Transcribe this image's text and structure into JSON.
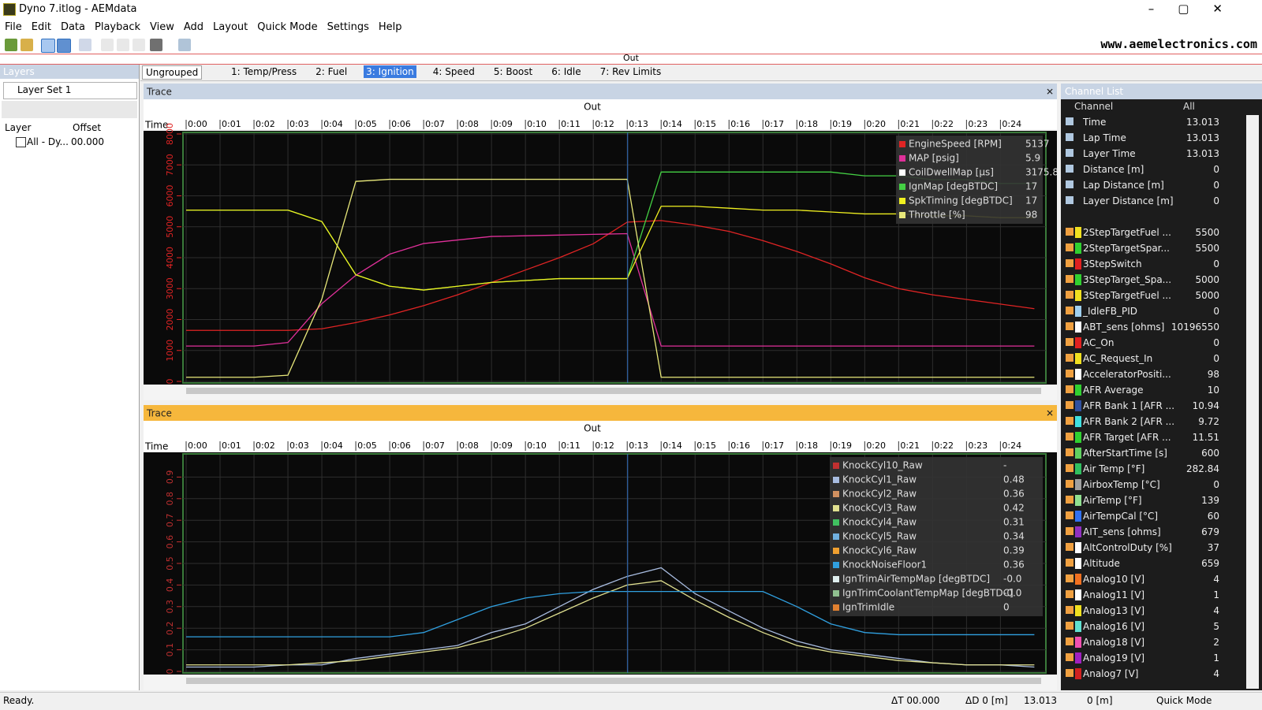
{
  "window": {
    "title": "Dyno 7.itlog - AEMdata"
  },
  "menu": [
    "File",
    "Edit",
    "Data",
    "Playback",
    "View",
    "Add",
    "Layout",
    "Quick Mode",
    "Settings",
    "Help"
  ],
  "toolbar": {
    "site": "www.aemelectronics.com",
    "out": "Out"
  },
  "layers": {
    "title": "Layers",
    "set": "Layer Set 1",
    "col_layer": "Layer",
    "col_offset": "Offset",
    "row_name": "All - Dy...",
    "row_offset": "00.000"
  },
  "tabs": {
    "group": "Ungrouped",
    "items": [
      "1: Temp/Press",
      "2: Fuel",
      "3: Ignition",
      "4: Speed",
      "5: Boost",
      "6: Idle",
      "7: Rev Limits"
    ],
    "active": 2
  },
  "traces": [
    {
      "type": "line",
      "header": "Trace",
      "title": "Out",
      "xlabel": "Time",
      "header_color": "#c8d4e4",
      "x": [
        0,
        1,
        2,
        3,
        4,
        5,
        6,
        7,
        8,
        9,
        10,
        11,
        12,
        13,
        14,
        15,
        16,
        17,
        18,
        19,
        20,
        21,
        22,
        23,
        24,
        25
      ],
      "xlim": [
        0,
        25.2
      ],
      "xticks": [
        {
          "value": 0,
          "label": "0:00"
        },
        {
          "value": 1,
          "label": "0:01"
        },
        {
          "value": 2,
          "label": "0:02"
        },
        {
          "value": 3,
          "label": "0:03"
        },
        {
          "value": 4,
          "label": "0:04"
        },
        {
          "value": 5,
          "label": "0:05"
        },
        {
          "value": 6,
          "label": "0:06"
        },
        {
          "value": 7,
          "label": "0:07"
        },
        {
          "value": 8,
          "label": "0:08"
        },
        {
          "value": 9,
          "label": "0:09"
        },
        {
          "value": 10,
          "label": "0:10"
        },
        {
          "value": 11,
          "label": "0:11"
        },
        {
          "value": 12,
          "label": "0:12"
        },
        {
          "value": 13,
          "label": "0:13"
        },
        {
          "value": 14,
          "label": "0:14"
        },
        {
          "value": 15,
          "label": "0:15"
        },
        {
          "value": 16,
          "label": "0:16"
        },
        {
          "value": 17,
          "label": "0:17"
        },
        {
          "value": 18,
          "label": "0:18"
        },
        {
          "value": 19,
          "label": "0:19"
        },
        {
          "value": 20,
          "label": "0:20"
        },
        {
          "value": 21,
          "label": "0:21"
        },
        {
          "value": 22,
          "label": "0:22"
        },
        {
          "value": 23,
          "label": "0:23"
        },
        {
          "value": 24,
          "label": "0:24"
        }
      ],
      "ylim": [
        0,
        8000
      ],
      "yticks": [
        0,
        1000,
        2000,
        3000,
        4000,
        5000,
        6000,
        7000,
        8000
      ],
      "series": [
        {
          "name": "EngineSpeed [RPM]",
          "color": "#e02424",
          "legend_value": "5137",
          "values": [
            1650,
            1650,
            1650,
            1650,
            1700,
            1900,
            2150,
            2450,
            2800,
            3200,
            3600,
            4000,
            4450,
            5150,
            5200,
            5050,
            4850,
            4550,
            4200,
            3800,
            3350,
            3000,
            2800,
            2650,
            2500,
            2350
          ]
        },
        {
          "name": "MAP [psig]",
          "color": "#e0309a",
          "legend_value": "5.9",
          "ylim": [
            -15,
            20
          ],
          "values": [
            -10,
            -10,
            -10,
            -9.5,
            -4,
            0,
            3,
            4.5,
            5,
            5.5,
            5.6,
            5.7,
            5.8,
            5.9,
            -10,
            -10,
            -10,
            -10,
            -10,
            -10,
            -10,
            -10,
            -10,
            -10,
            -10,
            -10
          ]
        },
        {
          "name": "CoilDwellMap [µs]",
          "color": "#ffffff",
          "legend_value": "3175.8"
        },
        {
          "name": "IgnMap [degBTDC]",
          "color": "#44d044",
          "legend_value": "17",
          "ylim": [
            -10,
            55
          ],
          "values": [
            35,
            35,
            35,
            35,
            32,
            18,
            15,
            14,
            15,
            16,
            16.5,
            17,
            17,
            17,
            45,
            45,
            45,
            45,
            45,
            45,
            44,
            44,
            43,
            43,
            42,
            42
          ]
        },
        {
          "name": "SpkTiming [degBTDC]",
          "color": "#f0f020",
          "legend_value": "17",
          "ylim": [
            -10,
            55
          ],
          "values": [
            35,
            35,
            35,
            35,
            32,
            18,
            15,
            14,
            15,
            16,
            16.5,
            17,
            17,
            17,
            36,
            36,
            35.5,
            35,
            35,
            34.5,
            34,
            34,
            33.5,
            33.5,
            33,
            33
          ]
        },
        {
          "name": "Throttle [%]",
          "color": "#e8e87a",
          "legend_value": "98",
          "ylim": [
            0,
            120
          ],
          "values": [
            2,
            2,
            2,
            3,
            40,
            97,
            98,
            98,
            98,
            98,
            98,
            98,
            98,
            98,
            2,
            2,
            2,
            2,
            2,
            2,
            2,
            2,
            2,
            2,
            2,
            2
          ]
        }
      ]
    },
    {
      "type": "line",
      "header": "Trace",
      "title": "Out",
      "xlabel": "Time",
      "header_color": "#f6b73c",
      "x": [
        0,
        1,
        2,
        3,
        4,
        5,
        6,
        7,
        8,
        9,
        10,
        11,
        12,
        13,
        14,
        15,
        16,
        17,
        18,
        19,
        20,
        21,
        22,
        23,
        24,
        25
      ],
      "xlim": [
        0,
        25.2
      ],
      "xticks": [
        {
          "value": 0,
          "label": "0:00"
        },
        {
          "value": 1,
          "label": "0:01"
        },
        {
          "value": 2,
          "label": "0:02"
        },
        {
          "value": 3,
          "label": "0:03"
        },
        {
          "value": 4,
          "label": "0:04"
        },
        {
          "value": 5,
          "label": "0:05"
        },
        {
          "value": 6,
          "label": "0:06"
        },
        {
          "value": 7,
          "label": "0:07"
        },
        {
          "value": 8,
          "label": "0:08"
        },
        {
          "value": 9,
          "label": "0:09"
        },
        {
          "value": 10,
          "label": "0:10"
        },
        {
          "value": 11,
          "label": "0:11"
        },
        {
          "value": 12,
          "label": "0:12"
        },
        {
          "value": 13,
          "label": "0:13"
        },
        {
          "value": 14,
          "label": "0:14"
        },
        {
          "value": 15,
          "label": "0:15"
        },
        {
          "value": 16,
          "label": "0:16"
        },
        {
          "value": 17,
          "label": "0:17"
        },
        {
          "value": 18,
          "label": "0:18"
        },
        {
          "value": 19,
          "label": "0:19"
        },
        {
          "value": 20,
          "label": "0:20"
        },
        {
          "value": 21,
          "label": "0:21"
        },
        {
          "value": 22,
          "label": "0:22"
        },
        {
          "value": 23,
          "label": "0:23"
        },
        {
          "value": 24,
          "label": "0:24"
        }
      ],
      "ylim": [
        0,
        1
      ],
      "yticks": [
        0,
        0.1,
        0.2,
        0.3,
        0.4,
        0.5,
        0.6,
        0.7,
        0.8,
        0.9
      ],
      "series": [
        {
          "name": "KnockCyl10_Raw",
          "color": "#c03030",
          "legend_value": "-"
        },
        {
          "name": "KnockCyl1_Raw",
          "color": "#a8bce0",
          "legend_value": "0.48",
          "values": [
            0.02,
            0.02,
            0.02,
            0.03,
            0.03,
            0.06,
            0.08,
            0.1,
            0.12,
            0.18,
            0.22,
            0.3,
            0.38,
            0.44,
            0.48,
            0.36,
            0.28,
            0.2,
            0.14,
            0.1,
            0.08,
            0.06,
            0.04,
            0.03,
            0.03,
            0.02
          ]
        },
        {
          "name": "KnockCyl2_Raw",
          "color": "#d09060",
          "legend_value": "0.36"
        },
        {
          "name": "KnockCyl3_Raw",
          "color": "#e0e090",
          "legend_value": "0.42",
          "values": [
            0.03,
            0.03,
            0.03,
            0.03,
            0.04,
            0.05,
            0.07,
            0.09,
            0.11,
            0.15,
            0.2,
            0.27,
            0.34,
            0.4,
            0.42,
            0.33,
            0.25,
            0.18,
            0.12,
            0.09,
            0.07,
            0.05,
            0.04,
            0.03,
            0.03,
            0.03
          ]
        },
        {
          "name": "KnockCyl4_Raw",
          "color": "#40c060",
          "legend_value": "0.31"
        },
        {
          "name": "KnockCyl5_Raw",
          "color": "#70b0e0",
          "legend_value": "0.34"
        },
        {
          "name": "KnockCyl6_Raw",
          "color": "#f0a030",
          "legend_value": "0.39"
        },
        {
          "name": "KnockNoiseFloor1",
          "color": "#30a0e0",
          "legend_value": "0.36",
          "values": [
            0.16,
            0.16,
            0.16,
            0.16,
            0.16,
            0.16,
            0.16,
            0.18,
            0.24,
            0.3,
            0.34,
            0.36,
            0.37,
            0.37,
            0.37,
            0.37,
            0.37,
            0.37,
            0.3,
            0.22,
            0.18,
            0.17,
            0.17,
            0.17,
            0.17,
            0.17
          ]
        },
        {
          "name": "IgnTrimAirTempMap [degBTDC]",
          "color": "#e0f0f0",
          "legend_value": "-0.0"
        },
        {
          "name": "IgnTrimCoolantTempMap [degBTDC]",
          "color": "#90c090",
          "legend_value": "-0.0"
        },
        {
          "name": "IgnTrimIdle",
          "color": "#e08030",
          "legend_value": "0"
        }
      ]
    }
  ],
  "channel_list": {
    "title": "Channel List",
    "col_channel": "Channel",
    "filter": "All",
    "system": [
      {
        "name": "Time",
        "value": "13.013"
      },
      {
        "name": "Lap Time",
        "value": "13.013"
      },
      {
        "name": "Layer Time",
        "value": "13.013"
      },
      {
        "name": "Distance [m]",
        "value": "0"
      },
      {
        "name": "Lap Distance [m]",
        "value": "0"
      },
      {
        "name": "Layer Distance [m]",
        "value": "0"
      }
    ],
    "channels": [
      {
        "name": "2StepTargetFuel ...",
        "value": "5500",
        "color": "#f0e020"
      },
      {
        "name": "2StepTargetSpar...",
        "value": "5500",
        "color": "#30d030"
      },
      {
        "name": "3StepSwitch",
        "value": "0",
        "color": "#e02020"
      },
      {
        "name": "3StepTarget_Spa...",
        "value": "5000",
        "color": "#30d030"
      },
      {
        "name": "3StepTargetFuel ...",
        "value": "5000",
        "color": "#f0e020"
      },
      {
        "name": "_IdleFB_PID",
        "value": "0",
        "color": "#a0d0f0"
      },
      {
        "name": "ABT_sens [ohms]",
        "value": "10196550",
        "color": "#ffffff"
      },
      {
        "name": "AC_On",
        "value": "0",
        "color": "#e02020"
      },
      {
        "name": "AC_Request_In",
        "value": "0",
        "color": "#f0e020"
      },
      {
        "name": "AcceleratorPositi...",
        "value": "98",
        "color": "#ffffff"
      },
      {
        "name": "AFR Average",
        "value": "10",
        "color": "#30d030"
      },
      {
        "name": "AFR Bank 1 [AFR ...",
        "value": "10.94",
        "color": "#3050a0"
      },
      {
        "name": "AFR Bank 2 [AFR ...",
        "value": "9.72",
        "color": "#40e0e0"
      },
      {
        "name": "AFR Target [AFR ...",
        "value": "11.51",
        "color": "#30d030"
      },
      {
        "name": "AfterStartTime [s]",
        "value": "600",
        "color": "#60d060"
      },
      {
        "name": "Air Temp [°F]",
        "value": "282.84",
        "color": "#30c060"
      },
      {
        "name": "AirboxTemp [°C]",
        "value": "0",
        "color": "#a0a0a0"
      },
      {
        "name": "AirTemp [°F]",
        "value": "139",
        "color": "#90e090"
      },
      {
        "name": "AirTempCal [°C]",
        "value": "60",
        "color": "#3070f0"
      },
      {
        "name": "AIT_sens [ohms]",
        "value": "679",
        "color": "#9030c0"
      },
      {
        "name": "AltControlDuty [%]",
        "value": "37",
        "color": "#ffffff"
      },
      {
        "name": "Altitude",
        "value": "659",
        "color": "#ffffff"
      },
      {
        "name": "Analog10 [V]",
        "value": "4",
        "color": "#f07020"
      },
      {
        "name": "Analog11 [V]",
        "value": "1",
        "color": "#ffffff"
      },
      {
        "name": "Analog13 [V]",
        "value": "4",
        "color": "#f0e020"
      },
      {
        "name": "Analog16 [V]",
        "value": "5",
        "color": "#60e0d0"
      },
      {
        "name": "Analog18 [V]",
        "value": "2",
        "color": "#f050b0"
      },
      {
        "name": "Analog19 [V]",
        "value": "1",
        "color": "#a020c0"
      },
      {
        "name": "Analog7 [V]",
        "value": "4",
        "color": "#d02020"
      }
    ]
  },
  "status": {
    "ready": "Ready.",
    "dt": "ΔT 00.000",
    "dd": "ΔD 0 [m]",
    "time": 13.013,
    "dist": "0 [m]",
    "mode": "Quick Mode"
  }
}
